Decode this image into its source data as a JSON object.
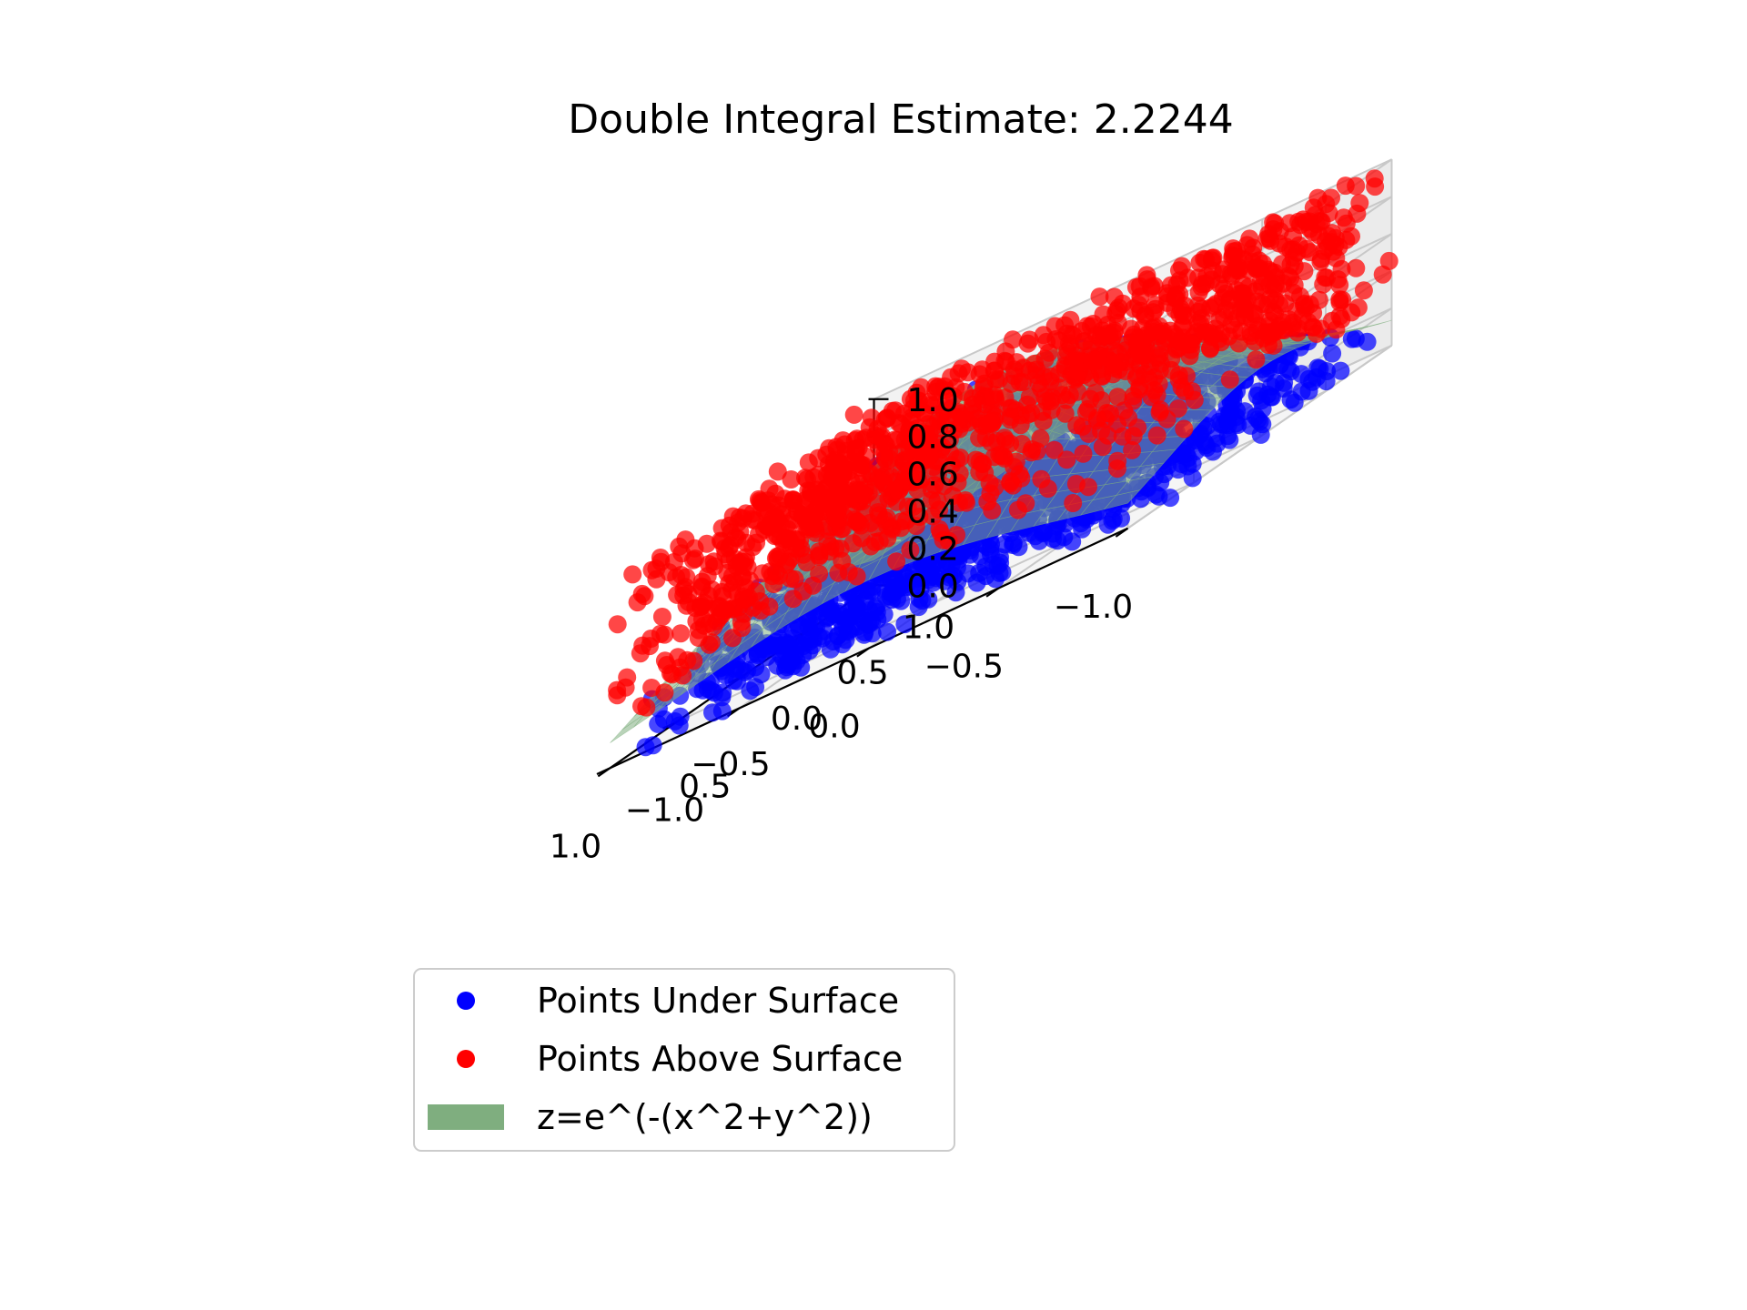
{
  "chart_data": {
    "type": "scatter",
    "projection": "3d",
    "title": "Double Integral Estimate: 2.2244",
    "xlabel": "",
    "ylabel": "",
    "zlabel": "",
    "x_ticks": [
      "−1.0",
      "−0.5",
      "0.0",
      "0.5",
      "1.0"
    ],
    "y_ticks": [
      "−1.0",
      "−0.5",
      "0.0",
      "0.5",
      "1.0"
    ],
    "z_ticks": [
      "0.0",
      "0.2",
      "0.4",
      "0.6",
      "0.8",
      "1.0"
    ],
    "xlim": [
      -1,
      1
    ],
    "ylim": [
      -1,
      1
    ],
    "zlim": [
      0,
      1
    ],
    "grid": true,
    "legend_position": "lower-left",
    "surface": {
      "label": "z=e^(-(x^2+y^2))",
      "color": "#7fae7f"
    },
    "series": [
      {
        "name": "Points Under Surface",
        "color": "#0000ff",
        "rule": "z <= e^(-(x^2+y^2))"
      },
      {
        "name": "Points Above Surface",
        "color": "#ff0000",
        "rule": "z > e^(-(x^2+y^2))"
      }
    ],
    "legend": [
      {
        "label": "Points Under Surface",
        "marker": "dot",
        "color": "#0000ff"
      },
      {
        "label": "Points Above Surface",
        "marker": "dot",
        "color": "#ff0000"
      },
      {
        "label": "z=e^(-(x^2+y^2))",
        "marker": "patch",
        "color": "#7fae7f"
      }
    ]
  }
}
